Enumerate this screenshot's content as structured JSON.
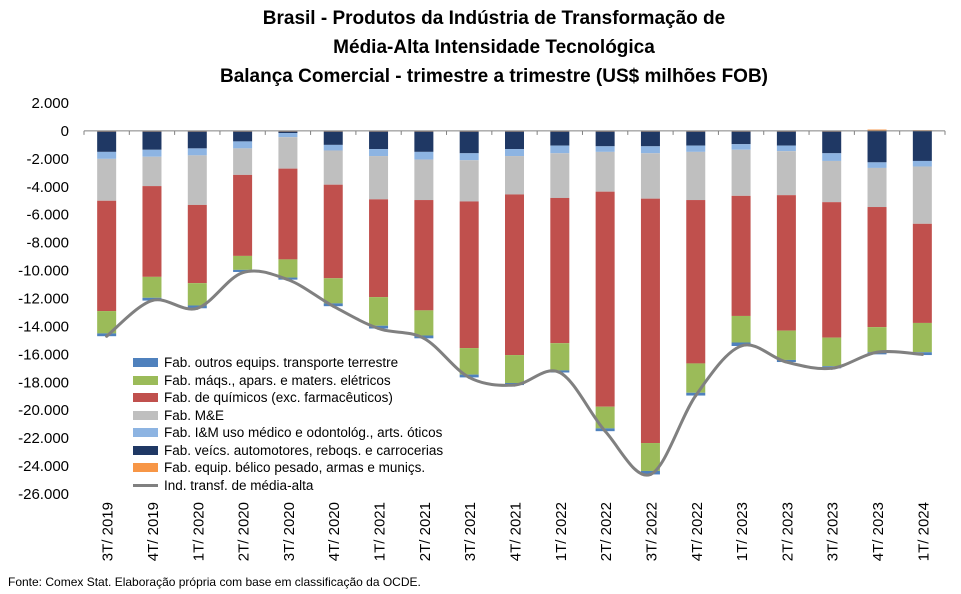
{
  "title_lines": [
    "Brasil - Produtos da Indústria de Transformação de",
    "Média-Alta Intensidade Tecnológica",
    "Balança Comercial - trimestre a trimestre (US$ milhões FOB)"
  ],
  "source": "Fonte: Comex Stat. Elaboração própria com base em classificação da OCDE.",
  "chart_data": {
    "type": "bar",
    "stacked": true,
    "title": "Brasil - Produtos da Indústria de Transformação de Média-Alta Intensidade Tecnológica Balança Comercial - trimestre a trimestre (US$ milhões FOB)",
    "xlabel": "",
    "ylabel": "",
    "ylim": [
      -26000,
      2000
    ],
    "yticks": [
      2000,
      0,
      -2000,
      -4000,
      -6000,
      -8000,
      -10000,
      -12000,
      -14000,
      -16000,
      -18000,
      -20000,
      -22000,
      -24000,
      -26000
    ],
    "ytick_labels": [
      "2.000",
      "0",
      "-2.000",
      "-4.000",
      "-6.000",
      "-8.000",
      "-10.000",
      "-12.000",
      "-14.000",
      "-16.000",
      "-18.000",
      "-20.000",
      "-22.000",
      "-24.000",
      "-26.000"
    ],
    "grid": false,
    "legend_position": "bottom-left",
    "categories": [
      "3T/ 2019",
      "4T/ 2019",
      "1T/ 2020",
      "2T/ 2020",
      "3T/ 2020",
      "4T/ 2020",
      "1T/ 2021",
      "2T/ 2021",
      "3T/ 2021",
      "4T/ 2021",
      "1T/ 2022",
      "2T/ 2022",
      "3T/ 2022",
      "4T/ 2022",
      "1T/ 2023",
      "2T/ 2023",
      "3T/ 2023",
      "4T/ 2023",
      "1T/ 2024"
    ],
    "series": [
      {
        "name": "Fab. equip. bélico pesado, armas e muniçs.",
        "color": "#F79646",
        "values": [
          -50,
          -50,
          -50,
          -50,
          -50,
          -50,
          -50,
          -50,
          -50,
          -50,
          -50,
          -50,
          -50,
          -50,
          -50,
          -50,
          -50,
          100,
          50
        ]
      },
      {
        "name": "Fab. veícs. automotores, reboqs. e carrocerias",
        "color": "#1F3864",
        "values": [
          -1450,
          -1300,
          -1200,
          -700,
          -100,
          -950,
          -1250,
          -1450,
          -1550,
          -1250,
          -1000,
          -1050,
          -1050,
          -1000,
          -900,
          -1000,
          -1550,
          -2250,
          -2150
        ]
      },
      {
        "name": "Fab. I&M uso médico e odontológ., arts. óticos",
        "color": "#8DB4E2",
        "values": [
          -500,
          -500,
          -500,
          -500,
          -300,
          -400,
          -500,
          -550,
          -500,
          -500,
          -550,
          -400,
          -500,
          -450,
          -400,
          -400,
          -550,
          -400,
          -400
        ]
      },
      {
        "name": "Fab. M&E",
        "color": "#BFBFBF",
        "values": [
          -3000,
          -2100,
          -3550,
          -1900,
          -2250,
          -2450,
          -3100,
          -2900,
          -2950,
          -2750,
          -3200,
          -2850,
          -3250,
          -3450,
          -3300,
          -3150,
          -2950,
          -2800,
          -4100
        ]
      },
      {
        "name": "Fab. de químicos (exc. farmacêuticos)",
        "color": "#C0504D",
        "values": [
          -7900,
          -6500,
          -5600,
          -5800,
          -6500,
          -6700,
          -7000,
          -7900,
          -10500,
          -11500,
          -10400,
          -15400,
          -17500,
          -11700,
          -8600,
          -9700,
          -9700,
          -8600,
          -7100
        ]
      },
      {
        "name": "Fab. máqs., apars. e maters. elétricos",
        "color": "#9BBB59",
        "values": [
          -1600,
          -1500,
          -1600,
          -1000,
          -1300,
          -1800,
          -2050,
          -1800,
          -1900,
          -2000,
          -1950,
          -1550,
          -2000,
          -2100,
          -1900,
          -2100,
          -2050,
          -1800,
          -2100
        ]
      },
      {
        "name": "Fab. outros equips. transporte terrestre",
        "color": "#4F81BD",
        "values": [
          -200,
          -200,
          -200,
          -150,
          -150,
          -200,
          -200,
          -200,
          -200,
          -150,
          -150,
          -200,
          -250,
          -200,
          -250,
          -150,
          -150,
          -150,
          -200
        ]
      }
    ],
    "line": {
      "name": "Ind. transf. de média-alta",
      "color": "#808080",
      "values": [
        -14700,
        -12150,
        -12700,
        -10150,
        -10650,
        -12550,
        -14150,
        -14850,
        -17650,
        -18200,
        -17300,
        -21500,
        -24600,
        -18950,
        -15400,
        -16550,
        -17000,
        -15850,
        -16000
      ]
    },
    "legend_order": [
      "Fab. outros equips. transporte terrestre",
      "Fab. máqs., apars. e maters. elétricos",
      "Fab. de químicos (exc. farmacêuticos)",
      "Fab. M&E",
      "Fab. I&M uso médico e odontológ., arts. óticos",
      "Fab. veícs. automotores, reboqs. e carrocerias",
      "Fab. equip. bélico pesado, armas e muniçs.",
      "Ind. transf. de média-alta"
    ]
  }
}
